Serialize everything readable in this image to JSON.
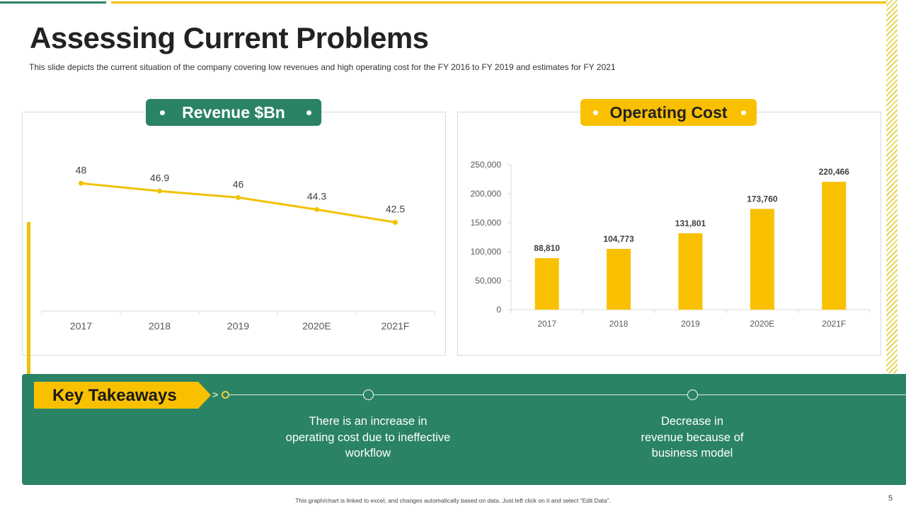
{
  "slide": {
    "title": "Assessing Current Problems",
    "subtitle": "This slide depicts the current situation of the company covering low revenues and high operating cost for the FY 2016  to FY 2019  and estimates for FY 2021",
    "footer": "This graph/chart is linked to excel, and changes automatically based on data. Just left click on it and select “Edit Data”.",
    "page_number": "5"
  },
  "colors": {
    "green": "#2a8364",
    "yellow": "#f9c000",
    "line_yellow": "#f2c200"
  },
  "revenue": {
    "pill_label": "Revenue $Bn"
  },
  "operating": {
    "pill_label": "Operating Cost"
  },
  "takeaways": {
    "label": "Key Takeaways",
    "items": [
      "There is an increase in operating cost due to ineffective workflow",
      "Decrease in revenue because of business model"
    ]
  },
  "chart_data": [
    {
      "type": "line",
      "title": "Revenue $Bn",
      "categories": [
        "2017",
        "2018",
        "2019",
        "2020E",
        "2021F"
      ],
      "values": [
        48,
        46.9,
        46,
        44.3,
        42.5
      ],
      "data_labels": [
        "48",
        "46.9",
        "46",
        "44.3",
        "42.5"
      ],
      "ylim": [
        30,
        54
      ],
      "grid": false,
      "color": "#f2c200"
    },
    {
      "type": "bar",
      "title": "Operating Cost",
      "categories": [
        "2017",
        "2018",
        "2019",
        "2020E",
        "2021F"
      ],
      "values": [
        88810,
        104773,
        131801,
        173760,
        220466
      ],
      "data_labels": [
        "88,810",
        "104,773",
        "131,801",
        "173,760",
        "220,466"
      ],
      "yticks": [
        "0",
        "50,000",
        "100,000",
        "150,000",
        "200,000",
        "250,000"
      ],
      "ylim": [
        0,
        250000
      ],
      "grid": false,
      "color": "#f9c000"
    }
  ]
}
